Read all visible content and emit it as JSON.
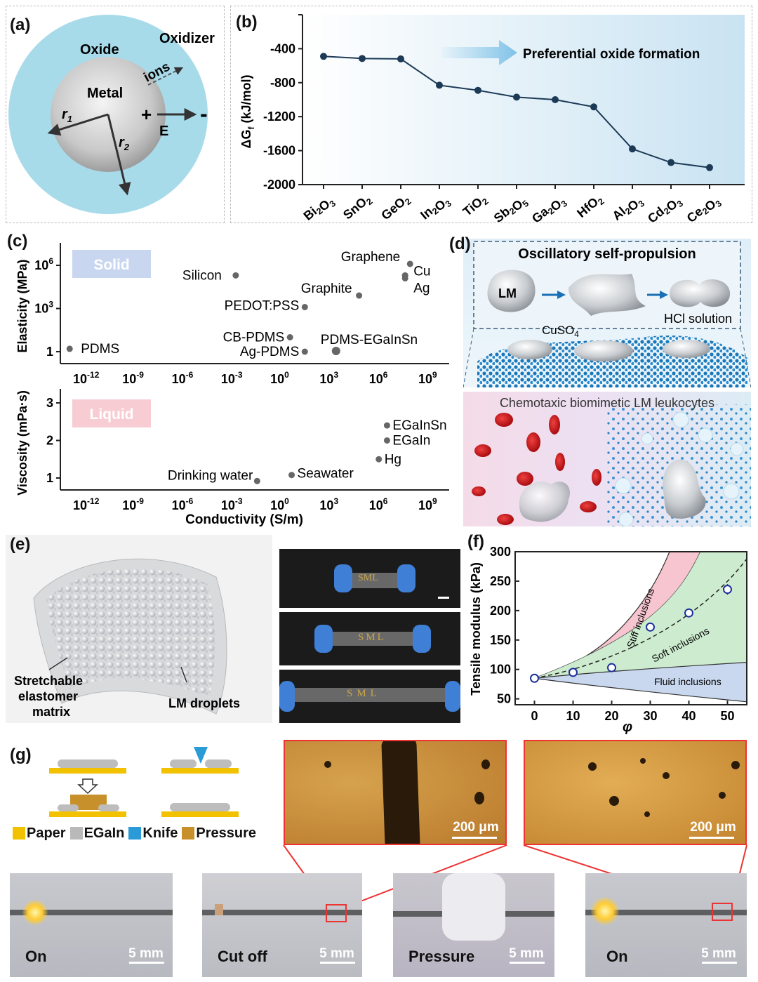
{
  "labels": {
    "a": "(a)",
    "b": "(b)",
    "c": "(c)",
    "d": "(d)",
    "e": "(e)",
    "f": "(f)",
    "g": "(g)"
  },
  "panel_a": {
    "oxide": "Oxide",
    "oxidizer": "Oxidizer",
    "metal": "Metal",
    "ions": "ions",
    "r1": "r",
    "r1sub": "1",
    "r2": "r",
    "r2sub": "2",
    "plus": "+",
    "minus": "-",
    "e": "E"
  },
  "panel_b": {
    "annotation": "Preferential oxide formation",
    "ylabel_main": "ΔG",
    "ylabel_sub": "f",
    "ylabel_unit": " (kJ/mol)",
    "chart_data": {
      "type": "line",
      "title": "",
      "xlabel": "",
      "ylabel": "ΔGf (kJ/mol)",
      "ylim": [
        -2000,
        0
      ],
      "yticks": [
        -400,
        -800,
        -1200,
        -1600,
        -2000
      ],
      "ytick_labels": [
        "-400",
        "-800",
        "-1200",
        "-1600",
        "-2000"
      ],
      "categories": [
        "Bi2O3",
        "SnO2",
        "GeO2",
        "In2O3",
        "TiO2",
        "Sb2O5",
        "Ga2O3",
        "HfO2",
        "Al2O3",
        "Cd2O3",
        "Ce2O3"
      ],
      "values": [
        -490,
        -515,
        -520,
        -830,
        -890,
        -970,
        -1000,
        -1085,
        -1580,
        -1740,
        -1800
      ]
    }
  },
  "panel_c": {
    "solid": "Solid",
    "liquid": "Liquid",
    "xlabel": "Conductivity (S/m)",
    "ylabel_top": "Elasticity (MPa)",
    "ylabel_bottom": "Viscosity (mPa·s)",
    "xticks": [
      "-12",
      "-9",
      "-6",
      "-3",
      "0",
      "3",
      "6",
      "9"
    ],
    "chart_data": [
      {
        "type": "scatter",
        "title": "Solid",
        "xlabel": "Conductivity (S/m)",
        "ylabel": "Elasticity (MPa)",
        "xscale": "log",
        "yscale": "log",
        "ytick_labels": [
          "10^6",
          "10^3",
          "1"
        ],
        "xlim": [
          -13.5,
          9.5
        ],
        "points": [
          {
            "label": "PDMS",
            "log_x": -12.8,
            "log_y": 0.2
          },
          {
            "label": "Silicon",
            "log_x": -2.7,
            "log_y": 5.3
          },
          {
            "label": "PEDOT:PSS",
            "log_x": 1.5,
            "log_y": 3.1
          },
          {
            "label": "Graphite",
            "log_x": 4.8,
            "log_y": 3.9
          },
          {
            "label": "Graphene",
            "log_x": 7.9,
            "log_y": 6.1
          },
          {
            "label": "Cu",
            "log_x": 7.6,
            "log_y": 5.3
          },
          {
            "label": "Ag",
            "log_x": 7.6,
            "log_y": 5.1
          },
          {
            "label": "CB-PDMS",
            "log_x": 0.6,
            "log_y": 1.0
          },
          {
            "label": "Ag-PDMS",
            "log_x": 1.5,
            "log_y": 0.0
          },
          {
            "label": "PDMS-EGaInSn",
            "log_x": 3.4,
            "log_y": 0.05
          }
        ]
      },
      {
        "type": "scatter",
        "title": "Liquid",
        "xlabel": "Conductivity (S/m)",
        "ylabel": "Viscosity (mPa·s)",
        "xscale": "log",
        "ylim": [
          0.8,
          3.3
        ],
        "ytick_labels": [
          "1",
          "2",
          "3"
        ],
        "points": [
          {
            "label": "Drinking water",
            "log_x": -1.4,
            "y": 0.92
          },
          {
            "label": "Seawater",
            "log_x": 0.7,
            "y": 1.08
          },
          {
            "label": "Hg",
            "log_x": 6.0,
            "y": 1.5
          },
          {
            "label": "EGaIn",
            "log_x": 6.5,
            "y": 2.0
          },
          {
            "label": "EGaInSn",
            "log_x": 6.5,
            "y": 2.4
          }
        ]
      }
    ]
  },
  "panel_d": {
    "title": "Oscillatory self-propulsion",
    "lm": "LM",
    "hcl": "HCl solution",
    "cuso4": "CuSO",
    "cuso4_sub": "4",
    "chemo": "Chemotaxic biomimetic LM leukocytes"
  },
  "panel_e": {
    "stretchable": "Stretchable",
    "elastomer": "elastomer",
    "matrix": "matrix",
    "droplets": "LM droplets",
    "sml": "SML"
  },
  "panel_f": {
    "ylabel": "Tensile modulus (kPa)",
    "xlabel": "φ",
    "stiff": "Stiff inclusions",
    "soft": "Soft inclusions",
    "fluid": "Fluid inclusions",
    "chart_data": {
      "type": "scatter",
      "xlabel": "φ",
      "ylabel": "Tensile modulus (kPa)",
      "xlim": [
        -5,
        55
      ],
      "ylim": [
        40,
        300
      ],
      "xticks": [
        0,
        10,
        20,
        30,
        40,
        50
      ],
      "yticks": [
        50,
        100,
        150,
        200,
        250,
        300
      ],
      "x": [
        0,
        10,
        20,
        30,
        40,
        50
      ],
      "y": [
        85,
        95,
        103,
        172,
        196,
        236
      ],
      "err": [
        3,
        5,
        5,
        5,
        7,
        9
      ]
    }
  },
  "panel_g": {
    "legend": [
      "Paper",
      "EGaIn",
      "Knife",
      "Pressure"
    ],
    "scale200": "200 μm",
    "scale5": "5 mm",
    "captions": [
      "On",
      "Cut off",
      "Pressure",
      "On"
    ]
  },
  "colors": {
    "paper": "#f2c200",
    "egain": "#b9b9b9",
    "knife": "#2a9bd6",
    "pressure": "#c8902a",
    "oxide": "#a8dbea",
    "redbox": "#e33"
  }
}
